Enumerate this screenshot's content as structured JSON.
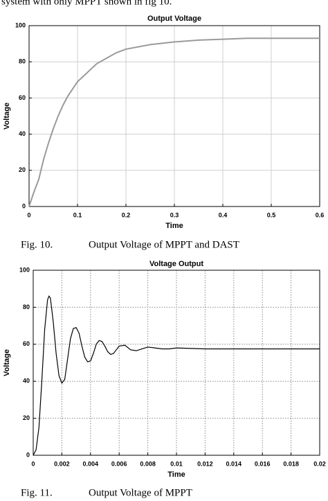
{
  "intro_text": "system with only MPPT shown in fig 10.",
  "chart_data": [
    {
      "type": "line",
      "title": "Output Voltage",
      "xlabel": "Time",
      "ylabel": "Voltage",
      "figure_label": "Fig. 10.",
      "caption": "Output Voltage of MPPT and DAST",
      "xlim": [
        0,
        0.6
      ],
      "xticks": [
        0,
        0.1,
        0.2,
        0.3,
        0.4,
        0.5,
        0.6
      ],
      "ylim": [
        0,
        100
      ],
      "yticks": [
        0,
        20,
        40,
        60,
        80,
        100
      ],
      "grid": true,
      "grid_style": "solid",
      "series": [
        {
          "color": "#9a9a9a",
          "x": [
            0,
            0.01,
            0.02,
            0.03,
            0.04,
            0.05,
            0.06,
            0.07,
            0.08,
            0.09,
            0.1,
            0.12,
            0.14,
            0.16,
            0.18,
            0.2,
            0.25,
            0.3,
            0.35,
            0.4,
            0.45,
            0.5,
            0.55,
            0.6
          ],
          "values": [
            0,
            8,
            15,
            26,
            35,
            43,
            50,
            56,
            61,
            65,
            69,
            74,
            79,
            82,
            85,
            87,
            89.5,
            91,
            92,
            92.5,
            93,
            93,
            93,
            93
          ]
        }
      ]
    },
    {
      "type": "line",
      "title": "Voltage Output",
      "xlabel": "Time",
      "ylabel": "Voltage",
      "figure_label": "Fig. 11.",
      "caption": "Output Voltage of MPPT",
      "xlim": [
        0,
        0.02
      ],
      "xticks": [
        0,
        0.002,
        0.004,
        0.006,
        0.008,
        0.01,
        0.012,
        0.014,
        0.016,
        0.018,
        0.02
      ],
      "ylim": [
        0,
        100
      ],
      "yticks": [
        0,
        20,
        40,
        60,
        80,
        100
      ],
      "grid": true,
      "grid_style": "dotted",
      "series": [
        {
          "color": "#000000",
          "x": [
            0,
            0.0002,
            0.0004,
            0.0006,
            0.0008,
            0.001,
            0.0011,
            0.0012,
            0.0014,
            0.0016,
            0.0018,
            0.002,
            0.0022,
            0.0024,
            0.0026,
            0.0028,
            0.003,
            0.0032,
            0.0034,
            0.0036,
            0.0038,
            0.004,
            0.0042,
            0.0044,
            0.0046,
            0.0048,
            0.005,
            0.0052,
            0.0054,
            0.0056,
            0.0058,
            0.006,
            0.0064,
            0.0068,
            0.0072,
            0.0076,
            0.008,
            0.0085,
            0.009,
            0.0095,
            0.01,
            0.012,
            0.014,
            0.016,
            0.018,
            0.02
          ],
          "values": [
            0,
            3,
            15,
            40,
            68,
            84,
            86,
            85,
            72,
            55,
            43,
            39,
            41,
            52,
            63,
            68.5,
            69,
            66,
            59,
            53,
            50.5,
            51,
            55,
            60,
            62,
            61.5,
            59,
            56,
            54.5,
            55,
            57,
            59,
            59.5,
            57,
            56.5,
            57.5,
            58.5,
            58,
            57.5,
            57.5,
            58,
            57.5,
            57.5,
            57.5,
            57.5,
            57.5
          ]
        }
      ]
    }
  ]
}
